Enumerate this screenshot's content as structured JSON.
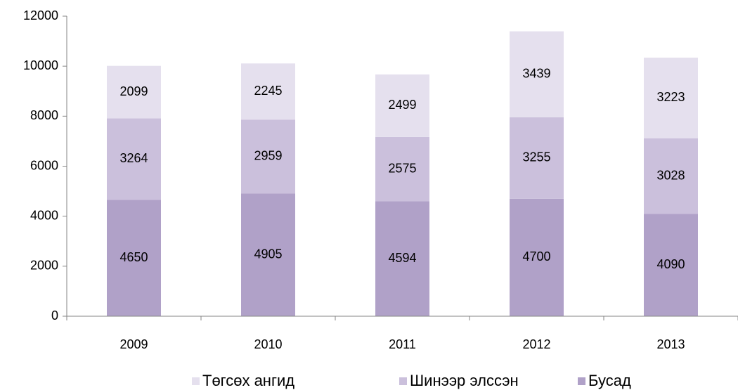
{
  "chart_data": {
    "type": "stacked_bar",
    "categories": [
      "2009",
      "2010",
      "2011",
      "2012",
      "2013"
    ],
    "series": [
      {
        "name": "Бусад",
        "color": "#b0a1c8",
        "values": [
          4650,
          4905,
          4594,
          4700,
          4090
        ]
      },
      {
        "name": "Шинээр элссэн",
        "color": "#cbc0dc",
        "values": [
          3264,
          2959,
          2575,
          3255,
          3028
        ]
      },
      {
        "name": "Төгсөх ангид",
        "color": "#e5e0ee",
        "values": [
          2099,
          2245,
          2499,
          3439,
          3223
        ]
      }
    ],
    "ylim": [
      0,
      12000
    ],
    "yticks": [
      0,
      2000,
      4000,
      6000,
      8000,
      10000,
      12000
    ],
    "grid": false,
    "legend": "bottom"
  }
}
